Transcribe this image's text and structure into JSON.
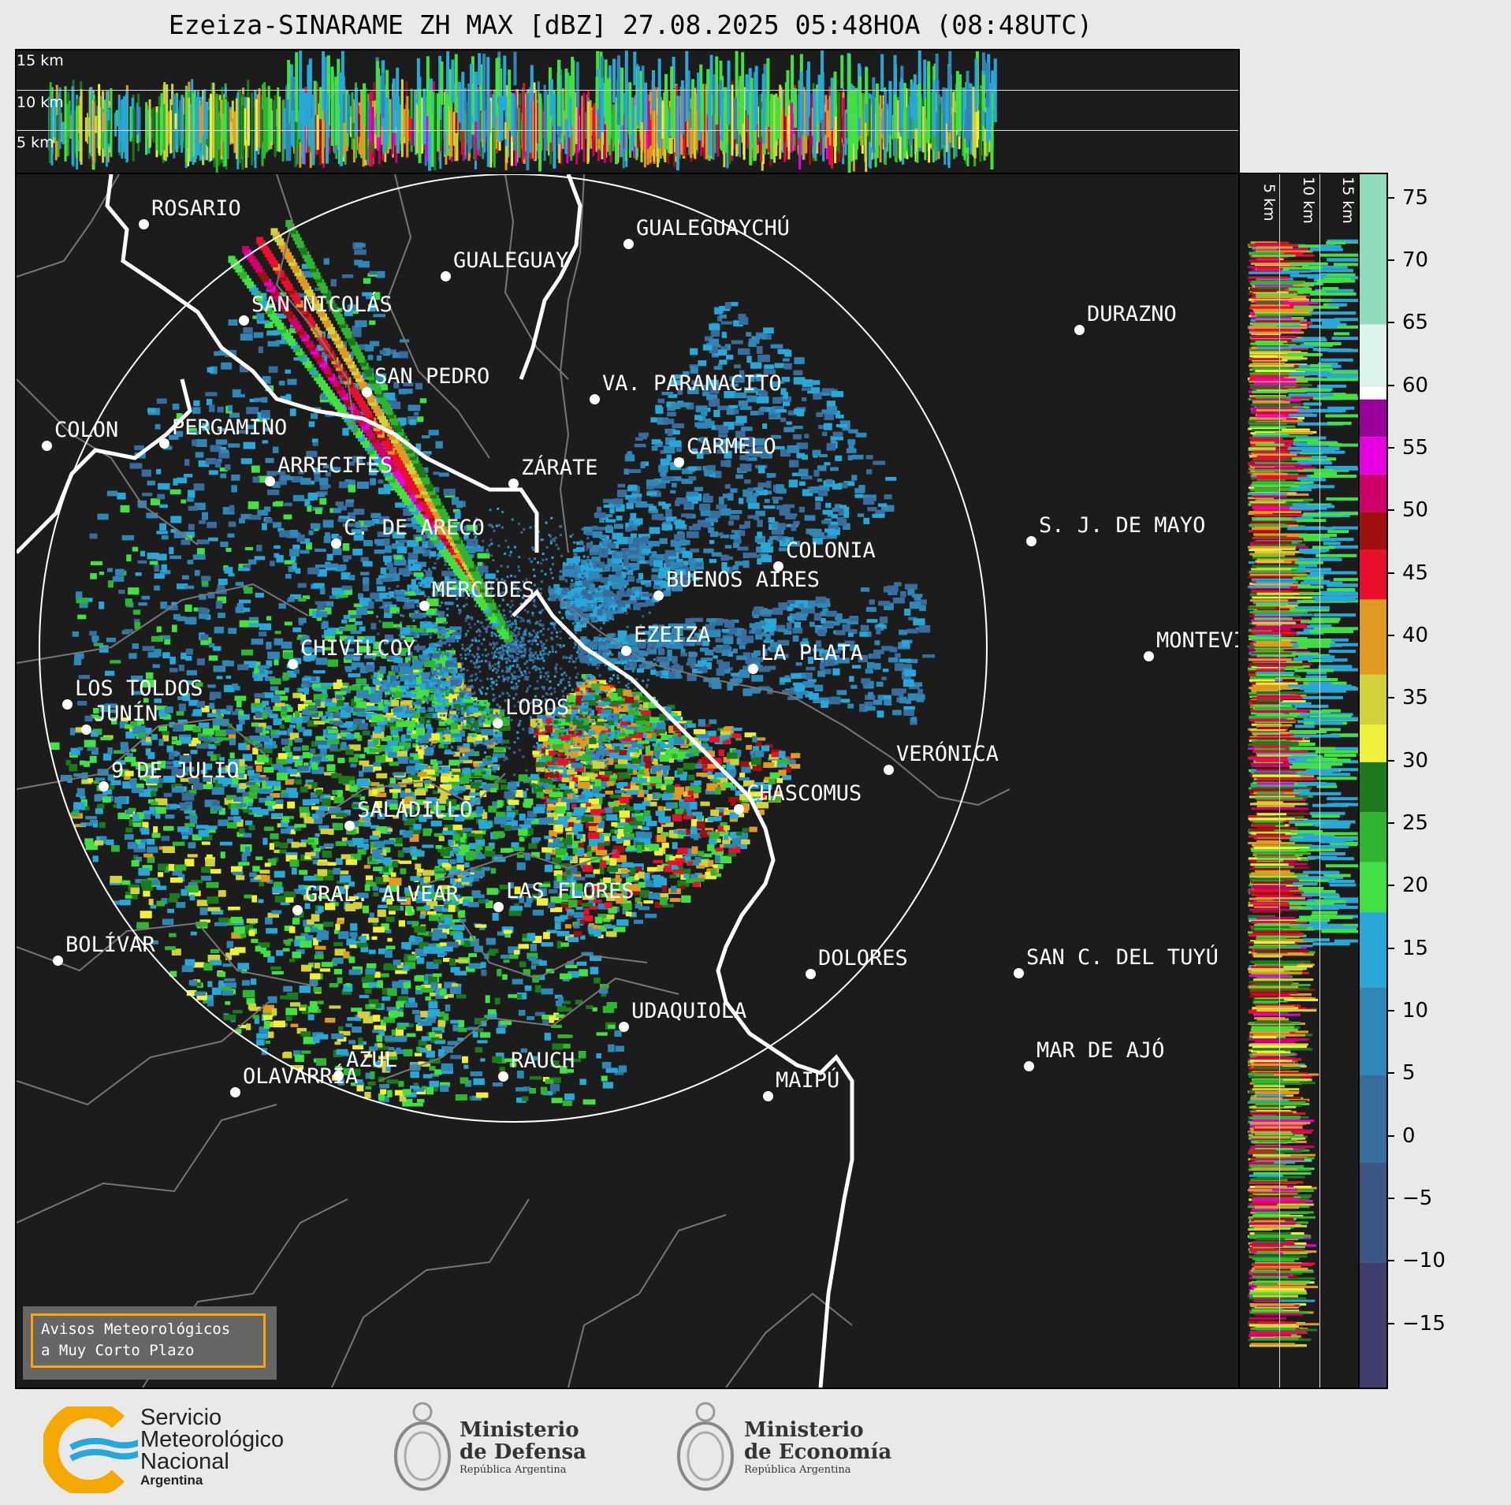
{
  "title": "Ezeiza-SINARAME ZH MAX [dBZ] 27.08.2025 05:48HOA (08:48UTC)",
  "top_strip_labels": [
    "15 km",
    "10 km",
    "5 km"
  ],
  "side_strip_labels": [
    "5 km",
    "10 km",
    "15 km"
  ],
  "colorbar": {
    "ticks": [
      "75",
      "70",
      "65",
      "60",
      "55",
      "50",
      "45",
      "40",
      "35",
      "30",
      "25",
      "20",
      "15",
      "10",
      "5",
      "0",
      "−5",
      "−10",
      "−15"
    ],
    "range": [
      -20,
      77
    ],
    "colors": [
      {
        "from": -20,
        "to": -10,
        "color": "#3e3d6b"
      },
      {
        "from": -10,
        "to": -2,
        "color": "#3b5585"
      },
      {
        "from": -2,
        "to": 5,
        "color": "#386c9c"
      },
      {
        "from": 5,
        "to": 12,
        "color": "#2f87b8"
      },
      {
        "from": 12,
        "to": 18,
        "color": "#29a7d8"
      },
      {
        "from": 18,
        "to": 22,
        "color": "#43e043"
      },
      {
        "from": 22,
        "to": 26,
        "color": "#2fb52f"
      },
      {
        "from": 26,
        "to": 30,
        "color": "#1c7a1c"
      },
      {
        "from": 30,
        "to": 33,
        "color": "#f0f03a"
      },
      {
        "from": 33,
        "to": 37,
        "color": "#d1d13b"
      },
      {
        "from": 37,
        "to": 43,
        "color": "#e09a22"
      },
      {
        "from": 43,
        "to": 47,
        "color": "#e8102c"
      },
      {
        "from": 47,
        "to": 50,
        "color": "#a01010"
      },
      {
        "from": 50,
        "to": 53,
        "color": "#d0006a"
      },
      {
        "from": 53,
        "to": 56,
        "color": "#e800e0"
      },
      {
        "from": 56,
        "to": 59,
        "color": "#9a009a"
      },
      {
        "from": 59,
        "to": 60,
        "color": "#ffffff"
      },
      {
        "from": 60,
        "to": 65,
        "color": "#ddf4ea"
      },
      {
        "from": 65,
        "to": 77,
        "color": "#8fdcbc"
      }
    ]
  },
  "cities": [
    {
      "name": "ROSARIO"
    },
    {
      "name": "GUALEGUAYCHÚ"
    },
    {
      "name": "GUALEGUAY"
    },
    {
      "name": "SAN NICOLÁS"
    },
    {
      "name": "DURAZNO"
    },
    {
      "name": "SAN PEDRO"
    },
    {
      "name": "VA. PARANACITO"
    },
    {
      "name": "COLON"
    },
    {
      "name": "PERGAMINO"
    },
    {
      "name": "CARMELO"
    },
    {
      "name": "ARRECIFES"
    },
    {
      "name": "ZÁRATE"
    },
    {
      "name": "C. DE ARECO"
    },
    {
      "name": "S. J. DE MAYO"
    },
    {
      "name": "COLONIA"
    },
    {
      "name": "JUNÍN"
    },
    {
      "name": "BUENOS AIRES"
    },
    {
      "name": "MERCEDES"
    },
    {
      "name": "EZEIZA"
    },
    {
      "name": "MONTEVIDEO"
    },
    {
      "name": "CHIVILCOY"
    },
    {
      "name": "LA PLATA"
    },
    {
      "name": "LOS TOLDOS"
    },
    {
      "name": "LOBOS"
    },
    {
      "name": "VERÓNICA"
    },
    {
      "name": "9 DE JULIO"
    },
    {
      "name": "CHASCOMUS"
    },
    {
      "name": "SALADILLO"
    },
    {
      "name": "GRAL. ALVEAR"
    },
    {
      "name": "LAS FLORES"
    },
    {
      "name": "BOLÍVAR"
    },
    {
      "name": "DOLORES"
    },
    {
      "name": "SAN C. DEL TUYÚ"
    },
    {
      "name": "UDAQUIOLA"
    },
    {
      "name": "MAR DE AJÓ"
    },
    {
      "name": "AZUL"
    },
    {
      "name": "RAUCH"
    },
    {
      "name": "OLAVARRÍA"
    },
    {
      "name": "MAIPÚ"
    }
  ],
  "avisos": {
    "line1": "Avisos Meteorológicos",
    "line2": "a Muy Corto Plazo"
  },
  "footer": {
    "smn": {
      "line1": "Servicio",
      "line2": "Meteorológico",
      "line3": "Nacional",
      "line4": "Argentina"
    },
    "defensa": {
      "line1": "Ministerio",
      "line2": "de Defensa",
      "line3": "República Argentina"
    },
    "economia": {
      "line1": "Ministerio",
      "line2": "de Economía",
      "line3": "República Argentina"
    }
  }
}
